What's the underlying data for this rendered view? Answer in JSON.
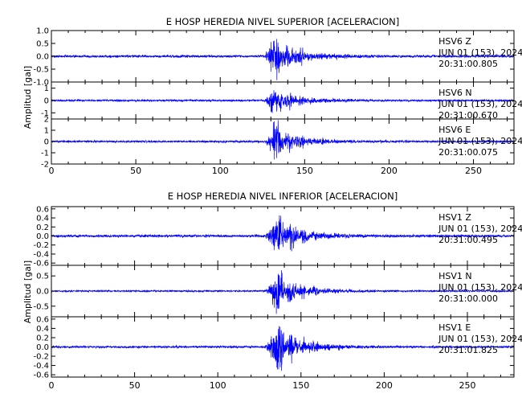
{
  "figure": {
    "axis_color": "#000000",
    "trace_color": "#0000ff"
  },
  "chart_data": [
    {
      "type": "line",
      "title": "E HOSP HEREDIA NIVEL SUPERIOR [ACELERACION]",
      "ylabel": "Amplitud [gal]",
      "xlabel": "",
      "xlim": [
        0,
        274
      ],
      "xticks": [
        0,
        50,
        100,
        150,
        200,
        250
      ],
      "x_minor_step": 10,
      "grid": false,
      "event": {
        "onset": 126,
        "peak": 132,
        "coda_end": 175
      },
      "panels": [
        {
          "channel": "HSV6 Z",
          "station": "HSV6",
          "component": "Z",
          "date": "JUN 01 (153), 2024",
          "time": "20:31:00.805",
          "ylim": [
            -1.0,
            1.0
          ],
          "yticks": [
            1.0,
            0.5,
            0.0,
            -0.5,
            -1.0
          ],
          "ytick_labels": [
            "1.0",
            "0.5",
            "0.0",
            "-0.5",
            "-1.0"
          ],
          "peak_amplitude": 0.95,
          "noise_amplitude": 0.05
        },
        {
          "channel": "HSV6 N",
          "station": "HSV6",
          "component": "N",
          "date": "JUN 01 (153), 2024",
          "time": "20:31:00.670",
          "ylim": [
            -1.5,
            1.5
          ],
          "yticks": [
            1,
            0,
            -1
          ],
          "ytick_labels": [
            "1",
            "0",
            "-1"
          ],
          "peak_amplitude": 1.45,
          "noise_amplitude": 0.08
        },
        {
          "channel": "HSV6 E",
          "station": "HSV6",
          "component": "E",
          "date": "JUN 01 (153), 2024",
          "time": "20:31:00.075",
          "ylim": [
            -2,
            2
          ],
          "yticks": [
            2,
            1,
            0,
            -1,
            -2
          ],
          "ytick_labels": [
            "2",
            "1",
            "0",
            "-1",
            "-2"
          ],
          "peak_amplitude": 1.9,
          "noise_amplitude": 0.1
        }
      ]
    },
    {
      "type": "line",
      "title": "E HOSP HEREDIA NIVEL INFERIOR [ACELERACION]",
      "ylabel": "Amplitud [gal]",
      "xlabel": "",
      "xlim": [
        0,
        278
      ],
      "xticks": [
        0,
        50,
        100,
        150,
        200,
        250
      ],
      "x_minor_step": 10,
      "grid": false,
      "event": {
        "onset": 128,
        "peak": 136,
        "coda_end": 180
      },
      "panels": [
        {
          "channel": "HSV1 Z",
          "station": "HSV1",
          "component": "Z",
          "date": "JUN 01 (153), 2024",
          "time": "20:31:00.495",
          "ylim": [
            -0.65,
            0.65
          ],
          "yticks": [
            0.6,
            0.4,
            0.2,
            0.0,
            -0.2,
            -0.4,
            -0.6
          ],
          "ytick_labels": [
            "0.6",
            "0.4",
            "0.2",
            "0.0",
            "-0.2",
            "-0.4",
            "-0.6"
          ],
          "peak_amplitude": 0.5,
          "noise_amplitude": 0.03
        },
        {
          "channel": "HSV1 N",
          "station": "HSV1",
          "component": "N",
          "date": "JUN 01 (153), 2024",
          "time": "20:31:00.000",
          "ylim": [
            -0.85,
            0.85
          ],
          "yticks": [
            0.5,
            0.0,
            -0.5
          ],
          "ytick_labels": [
            "0.5",
            "0.0",
            "-0.5"
          ],
          "peak_amplitude": 0.8,
          "noise_amplitude": 0.03
        },
        {
          "channel": "HSV1 E",
          "station": "HSV1",
          "component": "E",
          "date": "JUN 01 (153), 2024",
          "time": "20:31:01.825",
          "ylim": [
            -0.65,
            0.65
          ],
          "yticks": [
            0.6,
            0.4,
            0.2,
            0.0,
            -0.2,
            -0.4,
            -0.6
          ],
          "ytick_labels": [
            "0.6",
            "0.4",
            "0.2",
            "0.0",
            "-0.2",
            "-0.4",
            "-0.6"
          ],
          "peak_amplitude": 0.6,
          "noise_amplitude": 0.025
        }
      ]
    }
  ]
}
